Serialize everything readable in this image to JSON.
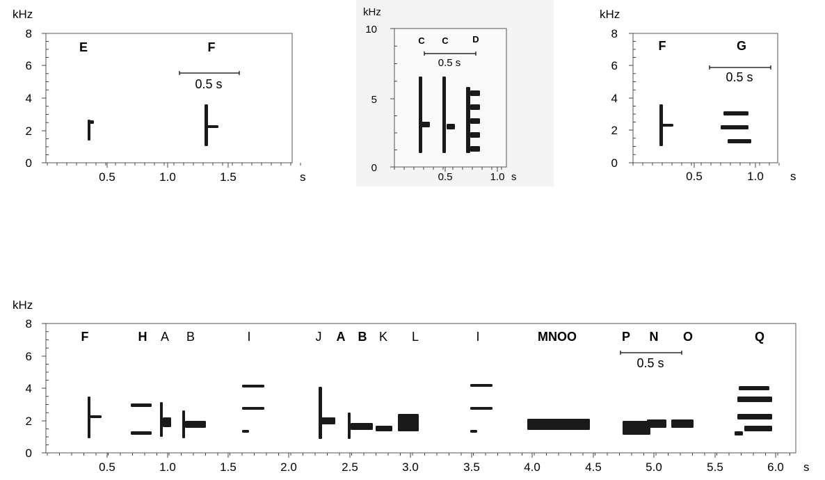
{
  "panels": [
    {
      "id": "top-left",
      "y_unit": "kHz",
      "x_unit": "s",
      "y_ticks": [
        "0",
        "2",
        "4",
        "6",
        "8"
      ],
      "x_ticks": [
        "0.5",
        "1.0",
        "1.5"
      ],
      "notes": [
        {
          "text": "E",
          "bold": true
        },
        {
          "text": "F",
          "bold": true
        }
      ],
      "scale_bar": "0.5 s"
    },
    {
      "id": "top-middle",
      "y_unit": "kHz",
      "x_unit": "s",
      "y_ticks": [
        "0",
        "5",
        "10"
      ],
      "x_ticks": [
        "0.5",
        "1.0"
      ],
      "notes": [
        {
          "text": "C",
          "bold": true
        },
        {
          "text": "C",
          "bold": true
        },
        {
          "text": "D",
          "bold": true
        }
      ],
      "scale_bar": "0.5 s"
    },
    {
      "id": "top-right",
      "y_unit": "kHz",
      "x_unit": "s",
      "y_ticks": [
        "0",
        "2",
        "4",
        "6",
        "8"
      ],
      "x_ticks": [
        "0.5",
        "1.0"
      ],
      "notes": [
        {
          "text": "F",
          "bold": true
        },
        {
          "text": "G",
          "bold": true
        }
      ],
      "scale_bar": "0.5 s"
    },
    {
      "id": "bottom",
      "y_unit": "kHz",
      "x_unit": "s",
      "y_ticks": [
        "0",
        "2",
        "4",
        "6",
        "8"
      ],
      "x_ticks": [
        "0.5",
        "1.0",
        "1.5",
        "2.0",
        "2.5",
        "3.0",
        "3.5",
        "4.0",
        "4.5",
        "5.0",
        "5.5",
        "6.0"
      ],
      "notes": [
        {
          "text": "F",
          "bold": true
        },
        {
          "text": "H",
          "bold": true
        },
        {
          "text": "A",
          "bold": false
        },
        {
          "text": "B",
          "bold": false
        },
        {
          "text": "I",
          "bold": false
        },
        {
          "text": "J",
          "bold": false
        },
        {
          "text": "A",
          "bold": true
        },
        {
          "text": "B",
          "bold": true
        },
        {
          "text": "K",
          "bold": false
        },
        {
          "text": "L",
          "bold": false
        },
        {
          "text": "I",
          "bold": false
        },
        {
          "text": "MNOO",
          "bold": true
        },
        {
          "text": "P",
          "bold": true
        },
        {
          "text": "N",
          "bold": true
        },
        {
          "text": "O",
          "bold": true
        },
        {
          "text": "Q",
          "bold": true
        }
      ],
      "scale_bar": "0.5 s"
    }
  ]
}
